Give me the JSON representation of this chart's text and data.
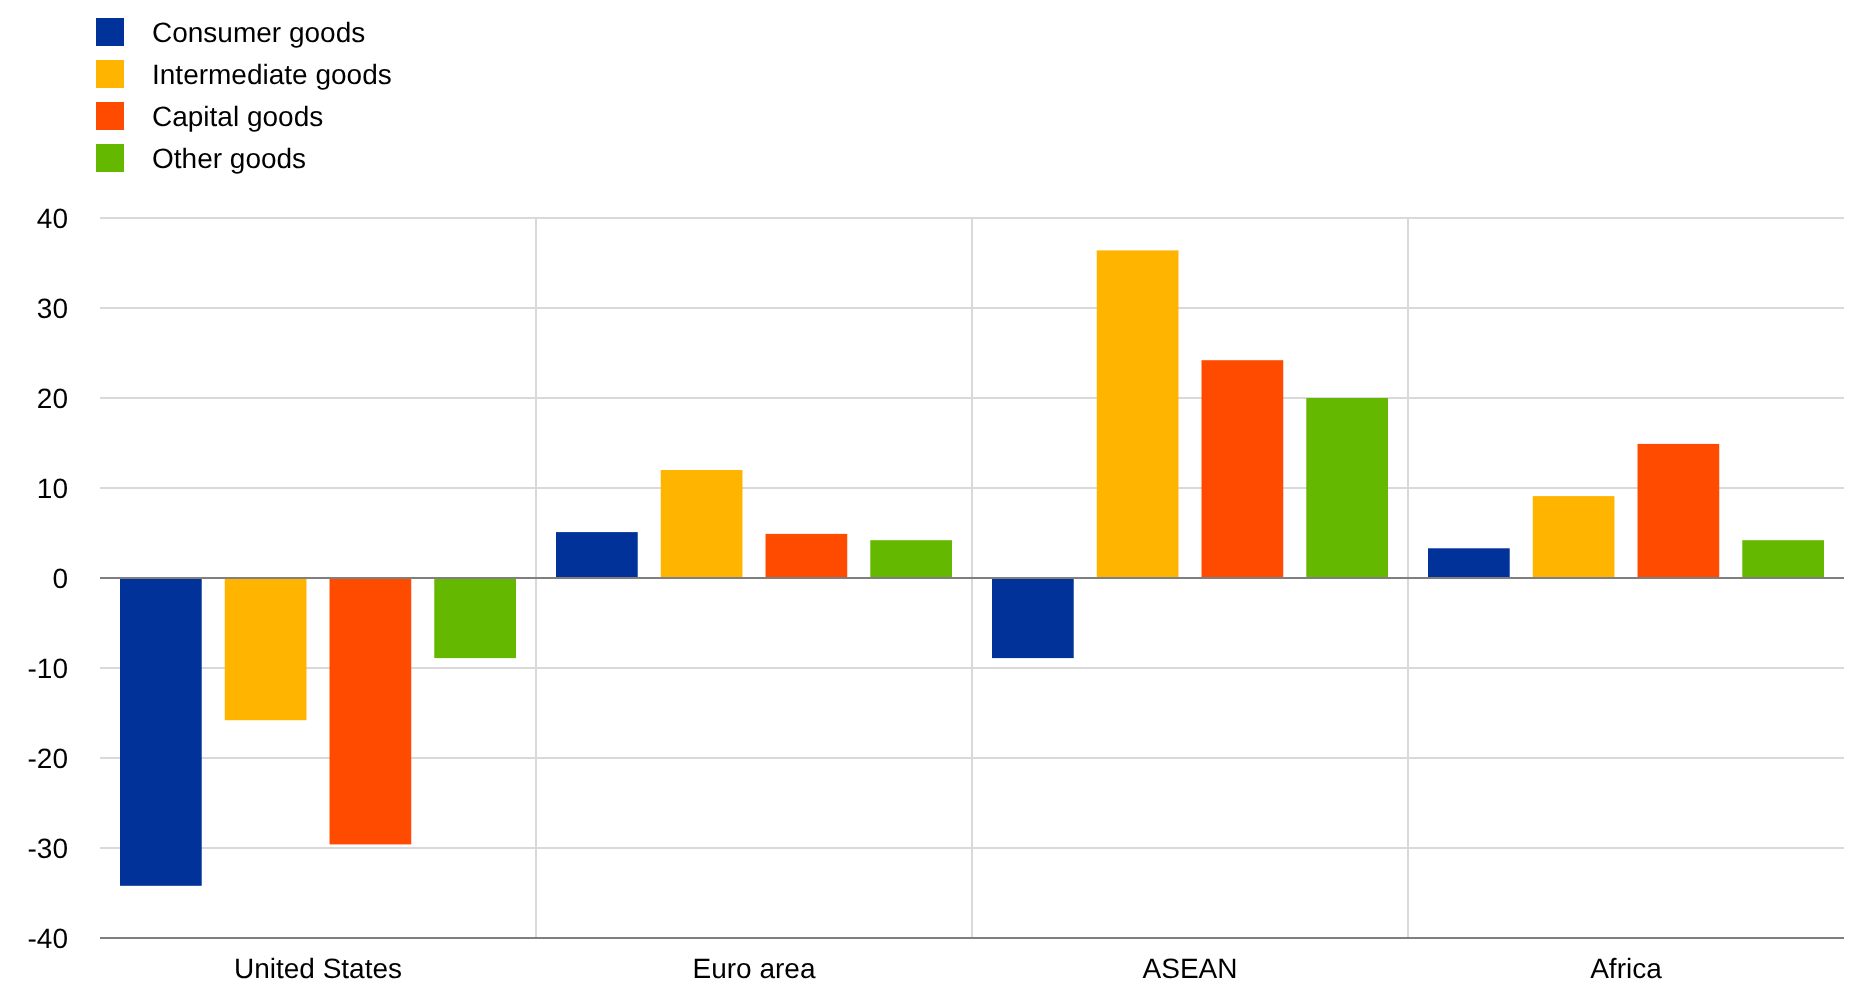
{
  "chart_data": {
    "type": "bar",
    "categories": [
      "United States",
      "Euro area",
      "ASEAN",
      "Africa"
    ],
    "series": [
      {
        "name": "Consumer goods",
        "color": "#003299",
        "values": [
          -34.2,
          5.1,
          -8.9,
          3.3
        ]
      },
      {
        "name": "Intermediate goods",
        "color": "#ffb400",
        "values": [
          -15.8,
          12.0,
          36.4,
          9.1
        ]
      },
      {
        "name": "Capital goods",
        "color": "#ff4b00",
        "values": [
          -29.6,
          4.9,
          24.2,
          14.9
        ]
      },
      {
        "name": "Other goods",
        "color": "#65b800",
        "values": [
          -8.9,
          4.2,
          20.0,
          4.2
        ]
      }
    ],
    "ylim": [
      -40,
      40
    ],
    "yticks": [
      -40,
      -30,
      -20,
      -10,
      0,
      10,
      20,
      30,
      40
    ],
    "grid": true,
    "legend": "top left"
  }
}
